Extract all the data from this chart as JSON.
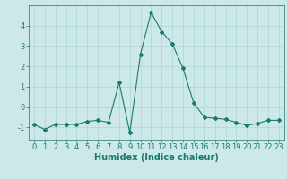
{
  "title": "",
  "xlabel": "Humidex (Indice chaleur)",
  "ylabel": "",
  "background_color": "#cce8e8",
  "line_color": "#1a7a6e",
  "xlim": [
    -0.5,
    23.5
  ],
  "ylim": [
    -1.6,
    5.0
  ],
  "x": [
    0,
    1,
    2,
    3,
    4,
    5,
    6,
    7,
    8,
    9,
    10,
    11,
    12,
    13,
    14,
    15,
    16,
    17,
    18,
    19,
    20,
    21,
    22,
    23
  ],
  "y": [
    -0.85,
    -1.1,
    -0.85,
    -0.85,
    -0.85,
    -0.7,
    -0.65,
    -0.75,
    1.2,
    -1.25,
    2.6,
    4.65,
    3.7,
    3.1,
    1.9,
    0.2,
    -0.5,
    -0.55,
    -0.6,
    -0.75,
    -0.9,
    -0.8,
    -0.65,
    -0.65
  ],
  "yticks": [
    -1,
    0,
    1,
    2,
    3,
    4
  ],
  "xticks": [
    0,
    1,
    2,
    3,
    4,
    5,
    6,
    7,
    8,
    9,
    10,
    11,
    12,
    13,
    14,
    15,
    16,
    17,
    18,
    19,
    20,
    21,
    22,
    23
  ],
  "grid_color": "#aed4d4",
  "tick_color": "#1a7a6e",
  "label_color": "#1a7a6e",
  "font_size": 6,
  "xlabel_fontsize": 7,
  "marker": "D",
  "marker_size": 2.0,
  "linewidth": 0.8
}
